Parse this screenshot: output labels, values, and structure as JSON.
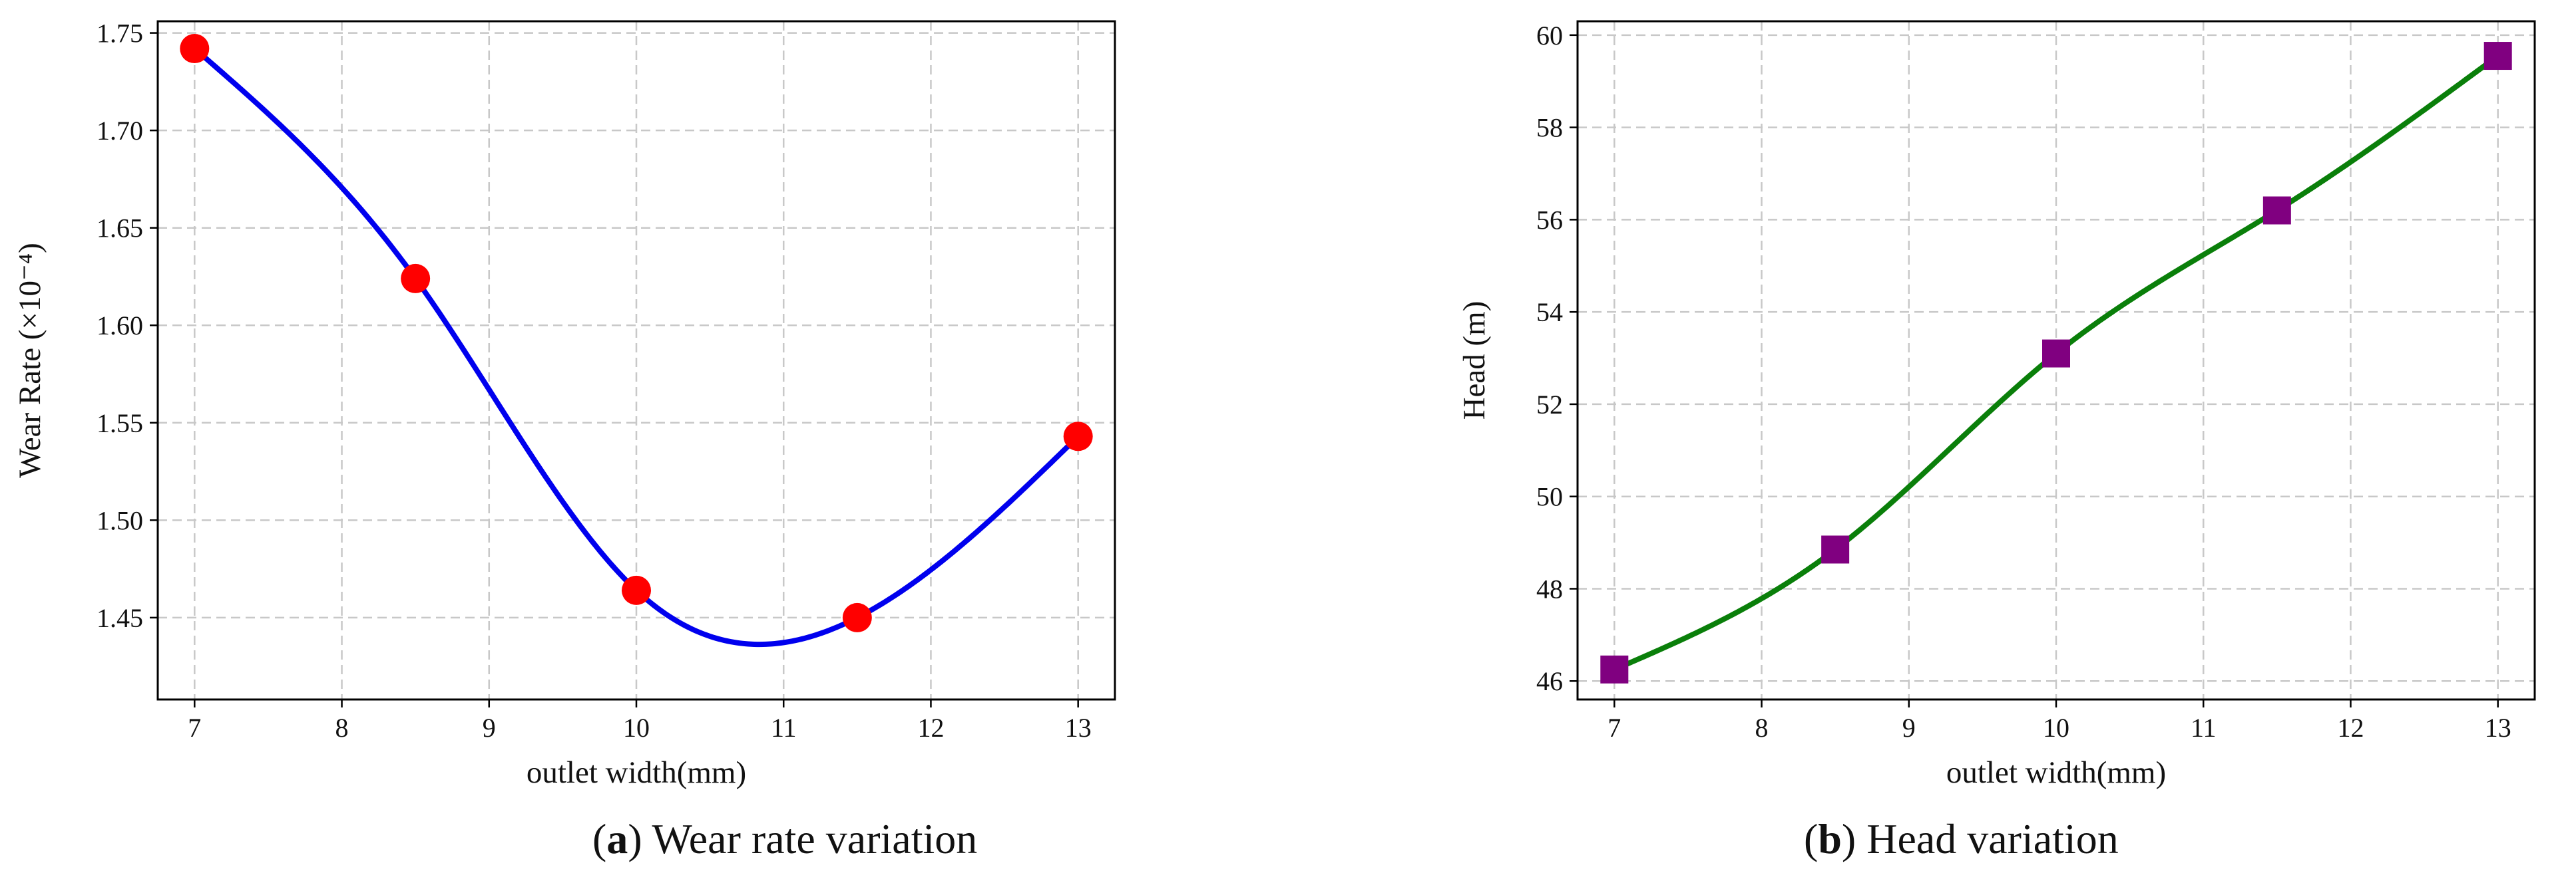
{
  "chart_data": [
    {
      "id": "a",
      "type": "line",
      "caption_letter": "a",
      "caption_text": "Wear rate variation",
      "xlabel": "outlet width(mm)",
      "ylabel": "Wear Rate (×10⁻⁴)",
      "xlim": [
        6.75,
        13.25
      ],
      "ylim": [
        1.408,
        1.756
      ],
      "xticks": [
        7,
        8,
        9,
        10,
        11,
        12,
        13
      ],
      "yticks": [
        1.45,
        1.5,
        1.55,
        1.6,
        1.65,
        1.7,
        1.75
      ],
      "ytick_labels": [
        "1.45",
        "1.50",
        "1.55",
        "1.60",
        "1.65",
        "1.70",
        "1.75"
      ],
      "grid": true,
      "series": [
        {
          "x": [
            7,
            8.5,
            10,
            11.5,
            13
          ],
          "y": [
            1.742,
            1.624,
            1.464,
            1.45,
            1.543
          ],
          "line_color": "#0000ee",
          "marker": "circle",
          "marker_color": "#ff0000"
        }
      ]
    },
    {
      "id": "b",
      "type": "line",
      "caption_letter": "b",
      "caption_text": "Head variation",
      "xlabel": "outlet width(mm)",
      "ylabel": "Head (m)",
      "xlim": [
        6.75,
        13.25
      ],
      "ylim": [
        45.6,
        60.3
      ],
      "xticks": [
        7,
        8,
        9,
        10,
        11,
        12,
        13
      ],
      "yticks": [
        46,
        48,
        50,
        52,
        54,
        56,
        58,
        60
      ],
      "ytick_labels": [
        "46",
        "48",
        "50",
        "52",
        "54",
        "56",
        "58",
        "60"
      ],
      "grid": true,
      "series": [
        {
          "x": [
            7,
            8.5,
            10,
            11.5,
            13
          ],
          "y": [
            46.25,
            48.85,
            53.1,
            56.2,
            59.55
          ],
          "line_color": "#0a7f0a",
          "marker": "square",
          "marker_color": "#800080"
        }
      ]
    }
  ]
}
